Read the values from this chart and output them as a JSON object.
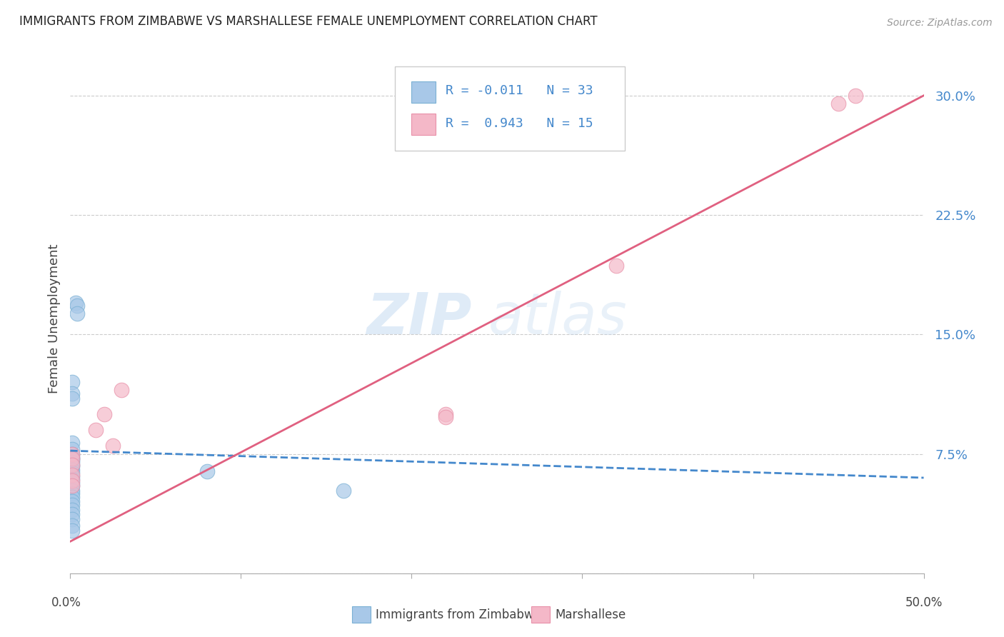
{
  "title": "IMMIGRANTS FROM ZIMBABWE VS MARSHALLESE FEMALE UNEMPLOYMENT CORRELATION CHART",
  "source": "Source: ZipAtlas.com",
  "ylabel": "Female Unemployment",
  "yticks": [
    0.0,
    0.075,
    0.15,
    0.225,
    0.3
  ],
  "ytick_labels": [
    "",
    "7.5%",
    "15.0%",
    "22.5%",
    "30.0%"
  ],
  "xlim": [
    0.0,
    0.5
  ],
  "ylim": [
    0.0,
    0.32
  ],
  "legend_r1_color": "R = -0.011",
  "legend_n1_color": "N = 33",
  "legend_r2_color": "R =  0.943",
  "legend_n2_color": "N = 15",
  "legend_label1": "Immigrants from Zimbabwe",
  "legend_label2": "Marshallese",
  "blue_color": "#a8c8e8",
  "blue_edge_color": "#7ab0d4",
  "pink_color": "#f4b8c8",
  "pink_edge_color": "#e890a8",
  "blue_line_color": "#4488cc",
  "pink_line_color": "#e06080",
  "watermark_zip": "ZIP",
  "watermark_atlas": "atlas",
  "background_color": "#ffffff",
  "grid_color": "#cccccc",
  "blue_scatter_x": [
    0.003,
    0.004,
    0.004,
    0.001,
    0.001,
    0.001,
    0.001,
    0.001,
    0.001,
    0.001,
    0.001,
    0.001,
    0.001,
    0.001,
    0.001,
    0.001,
    0.001,
    0.001,
    0.001,
    0.001,
    0.001,
    0.001,
    0.001,
    0.001,
    0.001,
    0.001,
    0.001,
    0.001,
    0.001,
    0.001,
    0.001,
    0.08,
    0.16
  ],
  "blue_scatter_y": [
    0.17,
    0.168,
    0.163,
    0.12,
    0.113,
    0.11,
    0.082,
    0.078,
    0.075,
    0.073,
    0.072,
    0.071,
    0.07,
    0.068,
    0.067,
    0.065,
    0.063,
    0.061,
    0.059,
    0.057,
    0.055,
    0.052,
    0.05,
    0.048,
    0.045,
    0.043,
    0.04,
    0.037,
    0.034,
    0.03,
    0.027,
    0.064,
    0.052
  ],
  "pink_scatter_x": [
    0.001,
    0.001,
    0.001,
    0.001,
    0.001,
    0.001,
    0.015,
    0.02,
    0.025,
    0.03,
    0.22,
    0.22,
    0.32,
    0.45,
    0.46
  ],
  "pink_scatter_y": [
    0.075,
    0.072,
    0.068,
    0.062,
    0.058,
    0.055,
    0.09,
    0.1,
    0.08,
    0.115,
    0.1,
    0.098,
    0.193,
    0.295,
    0.3
  ],
  "blue_trend_x": [
    0.0,
    0.5
  ],
  "blue_trend_y": [
    0.077,
    0.06
  ],
  "pink_trend_x": [
    0.0,
    0.5
  ],
  "pink_trend_y": [
    0.02,
    0.3
  ]
}
